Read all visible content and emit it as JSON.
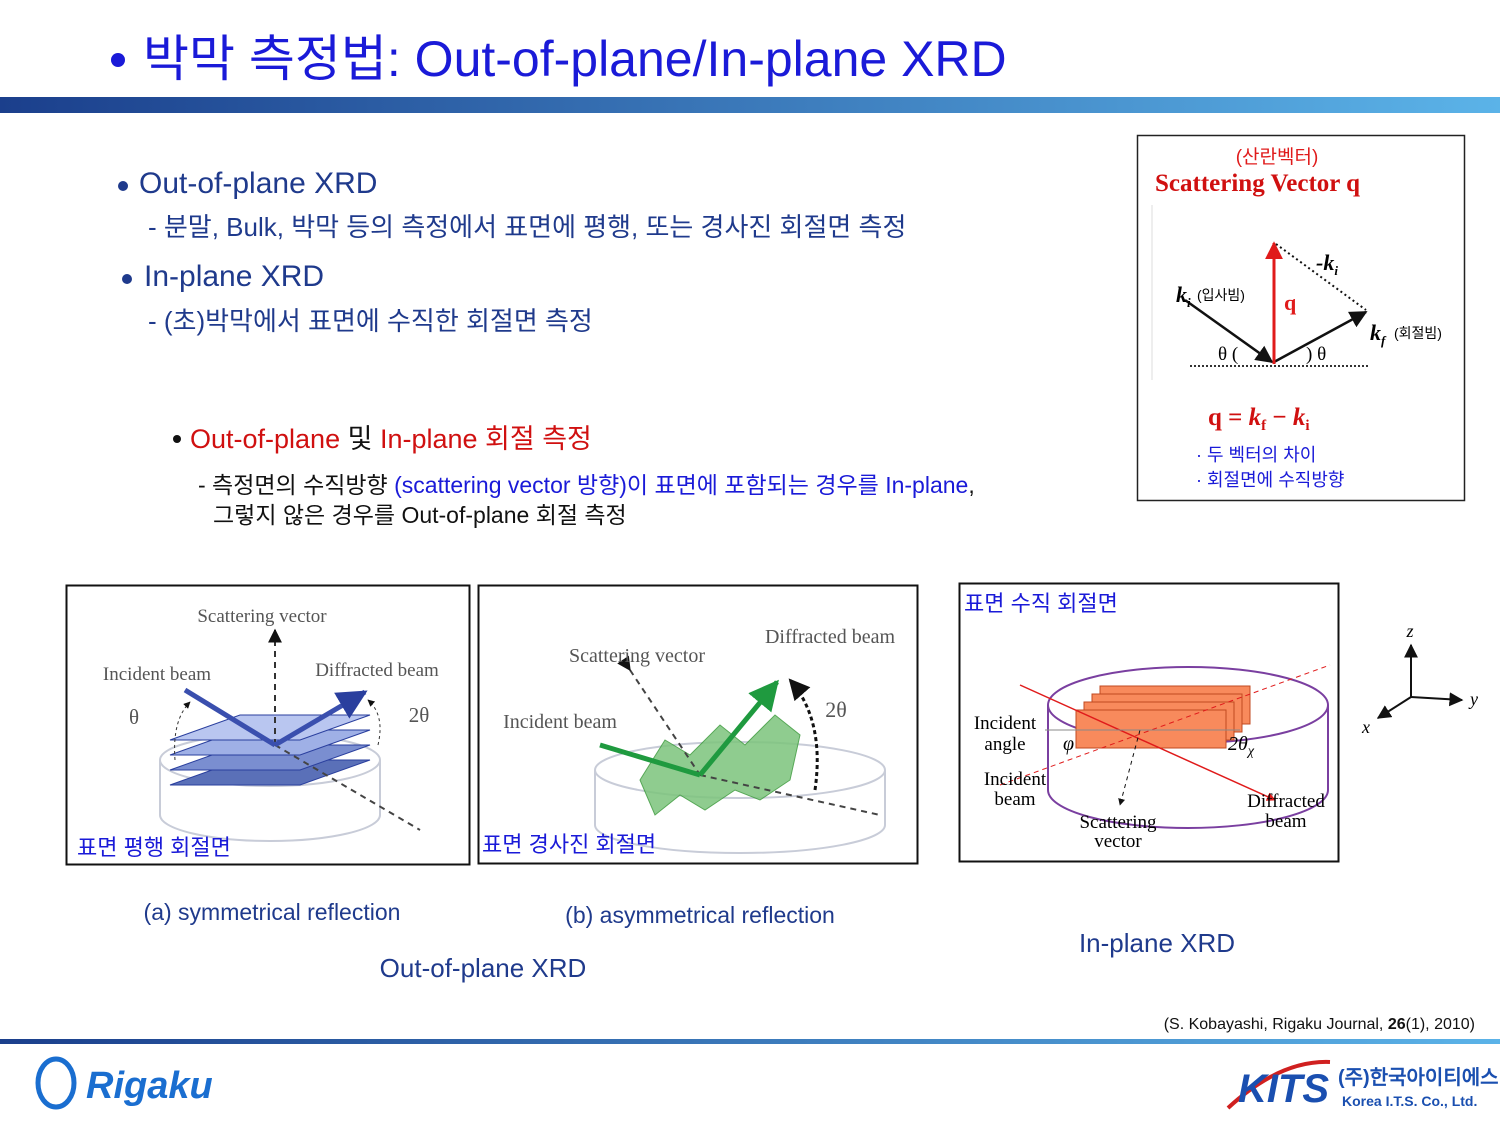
{
  "header": {
    "title": "박막 측정법: Out-of-plane/In-plane XRD"
  },
  "bullets": [
    {
      "heading": "Out-of-plane XRD",
      "detail": "- 분말, Bulk, 박막 등의 측정에서 표면에 평행, 또는 경사진 회절면 측정"
    },
    {
      "heading": "In-plane XRD",
      "detail": "- (초)박막에서 표면에 수직한 회절면 측정"
    }
  ],
  "definition": {
    "heading": [
      "Out-of-plane",
      " 및 ",
      "In-plane 회절 측정"
    ],
    "detail_line1": [
      "- 측정면의 수직방향 ",
      "(scattering vector 방향)이 표면에 포함되는 경우를 In-plane",
      ","
    ],
    "detail_line2": "그렇지 않은 경우를 Out-of-plane 회절 측정"
  },
  "scattering_vector_panel": {
    "korean_title": "(산란벡터)",
    "title": "Scattering Vector q",
    "incident": {
      "symbol": "k",
      "subscript": "i",
      "note": "(입사빔)"
    },
    "diffracted": {
      "symbol": "k",
      "subscript": "f",
      "note": "(회절빔)"
    },
    "reversed_incident": {
      "symbol": "-k",
      "subscript": "i"
    },
    "q": "q",
    "theta_left": "θ (",
    "theta_right": ") θ",
    "equation": [
      "q",
      " = ",
      "k",
      "f",
      " − ",
      "k",
      "i"
    ],
    "notes": [
      "· 두 벡터의 차이",
      "· 회절면에 수직방향"
    ]
  },
  "figure_a": {
    "scattering_vector": "Scattering vector",
    "incident_beam": "Incident beam",
    "diffracted_beam": "Diffracted beam",
    "theta": "θ",
    "two_theta": "2θ",
    "plane": "표면 평행 회절면",
    "caption": "(a) symmetrical reflection"
  },
  "figure_b": {
    "scattering_vector": "Scattering vector",
    "incident_beam": "Incident beam",
    "diffracted_beam": "Diffracted beam",
    "two_theta": "2θ",
    "plane": "표면 경사진 회절면",
    "caption": "(b) asymmetrical reflection"
  },
  "figure_c": {
    "plane": "표면 수직 회절면",
    "incident_angle": [
      "Incident",
      "angle"
    ],
    "phi": "φ",
    "two_theta": "2θ",
    "chi": "χ",
    "incident_beam": [
      "Incident",
      "beam"
    ],
    "scattering_vector": [
      "Scattering",
      "vector"
    ],
    "diffracted_beam": [
      "Diffracted",
      "beam"
    ]
  },
  "axes": {
    "z": "z",
    "y": "y",
    "x": "x"
  },
  "group_captions": {
    "out_of_plane": "Out-of-plane XRD",
    "in_plane": "In-plane XRD"
  },
  "citation": [
    "(S. Kobayashi, Rigaku Journal, ",
    "26",
    "(1), 2010)"
  ],
  "footer": {
    "rigaku": "Rigaku",
    "kits": "KITS",
    "kits_korean": "(주)한국아이티에스",
    "kits_english": "Korea I.T.S. Co., Ltd."
  }
}
